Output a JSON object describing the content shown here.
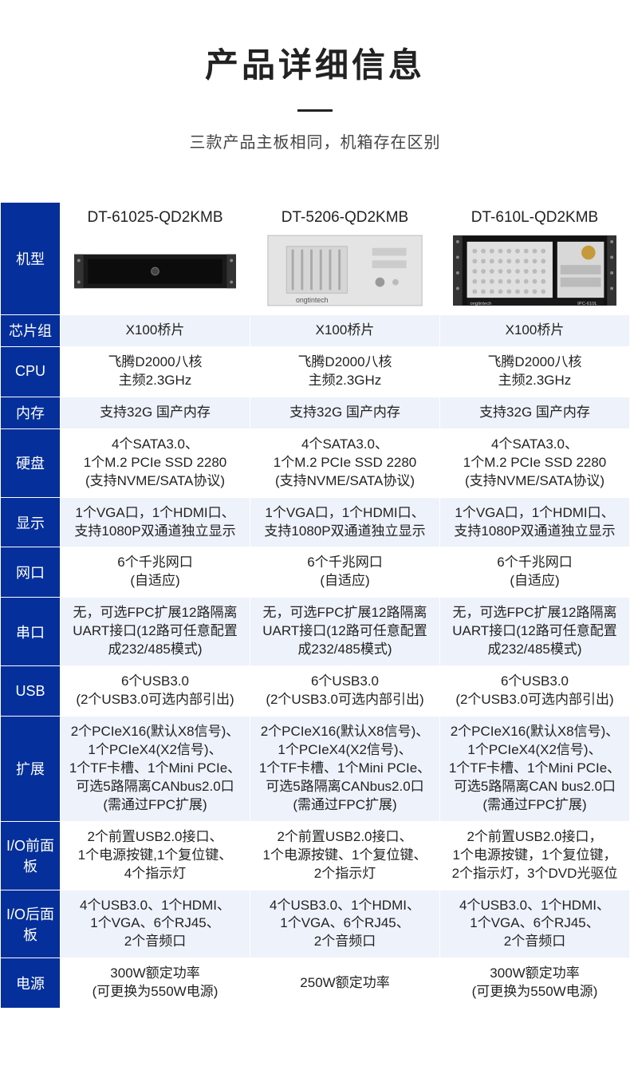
{
  "header": {
    "title": "产品详细信息",
    "subtitle": "三款产品主板相同，机箱存在区别"
  },
  "colors": {
    "header_bg": "#05309b",
    "header_text": "#ffffff",
    "alt_row_a": "#eef2fa",
    "alt_row_b": "#ffffff",
    "text": "#222222"
  },
  "products": [
    {
      "name": "DT-61025-QD2KMB",
      "img_style": "rack-2u-black"
    },
    {
      "name": "DT-5206-QD2KMB",
      "img_style": "box-silver"
    },
    {
      "name": "DT-610L-QD2KMB",
      "img_style": "rack-4u-black"
    }
  ],
  "rows": [
    {
      "label": "机型",
      "is_model_row": true
    },
    {
      "label": "芯片组",
      "alt": "a",
      "cells": [
        "X100桥片",
        "X100桥片",
        "X100桥片"
      ]
    },
    {
      "label": "CPU",
      "alt": "b",
      "cells": [
        "飞腾D2000八核\n主频2.3GHz",
        "飞腾D2000八核\n主频2.3GHz",
        "飞腾D2000八核\n主频2.3GHz"
      ]
    },
    {
      "label": "内存",
      "alt": "a",
      "cells": [
        "支持32G 国产内存",
        "支持32G 国产内存",
        "支持32G 国产内存"
      ]
    },
    {
      "label": "硬盘",
      "alt": "b",
      "cells": [
        "4个SATA3.0、\n1个M.2 PCIe SSD 2280\n(支持NVME/SATA协议)",
        "4个SATA3.0、\n1个M.2 PCIe SSD 2280\n(支持NVME/SATA协议)",
        "4个SATA3.0、\n1个M.2 PCIe SSD 2280\n(支持NVME/SATA协议)"
      ]
    },
    {
      "label": "显示",
      "alt": "a",
      "cells": [
        "1个VGA口，1个HDMI口、\n支持1080P双通道独立显示",
        "1个VGA口，1个HDMI口、\n支持1080P双通道独立显示",
        "1个VGA口，1个HDMI口、\n支持1080P双通道独立显示"
      ]
    },
    {
      "label": "网口",
      "alt": "b",
      "cells": [
        "6个千兆网口\n(自适应)",
        "6个千兆网口\n(自适应)",
        "6个千兆网口\n(自适应)"
      ]
    },
    {
      "label": "串口",
      "alt": "a",
      "cells": [
        "无，可选FPC扩展12路隔离\nUART接口(12路可任意配置\n成232/485模式)",
        "无，可选FPC扩展12路隔离\nUART接口(12路可任意配置\n成232/485模式)",
        "无，可选FPC扩展12路隔离\nUART接口(12路可任意配置\n成232/485模式)"
      ]
    },
    {
      "label": "USB",
      "alt": "b",
      "cells": [
        "6个USB3.0\n(2个USB3.0可选内部引出)",
        "6个USB3.0\n(2个USB3.0可选内部引出)",
        "6个USB3.0\n(2个USB3.0可选内部引出)"
      ]
    },
    {
      "label": "扩展",
      "alt": "a",
      "cells": [
        "2个PCIeX16(默认X8信号)、\n1个PCIeX4(X2信号)、\n1个TF卡槽、1个Mini PCIe、\n可选5路隔离CANbus2.0口\n(需通过FPC扩展)",
        "2个PCIeX16(默认X8信号)、\n1个PCIeX4(X2信号)、\n1个TF卡槽、1个Mini PCIe、\n可选5路隔离CANbus2.0口\n(需通过FPC扩展)",
        "2个PCIeX16(默认X8信号)、\n1个PCIeX4(X2信号)、\n1个TF卡槽、1个Mini PCIe、\n可选5路隔离CAN bus2.0口\n(需通过FPC扩展)"
      ]
    },
    {
      "label": "I/O\n前面板",
      "alt": "b",
      "cells": [
        "2个前置USB2.0接口、\n1个电源按键,1个复位键、\n4个指示灯",
        "2个前置USB2.0接口、\n1个电源按键、1个复位键、\n2个指示灯",
        "2个前置USB2.0接口，\n1个电源按键，1个复位键，\n2个指示灯，3个DVD光驱位"
      ]
    },
    {
      "label": "I/O\n后面板",
      "alt": "a",
      "cells": [
        "4个USB3.0、1个HDMI、\n1个VGA、6个RJ45、\n2个音频口",
        "4个USB3.0、1个HDMI、\n1个VGA、6个RJ45、\n2个音频口",
        "4个USB3.0、1个HDMI、\n1个VGA、6个RJ45、\n2个音频口"
      ]
    },
    {
      "label": "电源",
      "alt": "b",
      "cells": [
        "300W额定功率\n(可更换为550W电源)",
        "250W额定功率",
        "300W额定功率\n(可更换为550W电源)"
      ]
    }
  ]
}
